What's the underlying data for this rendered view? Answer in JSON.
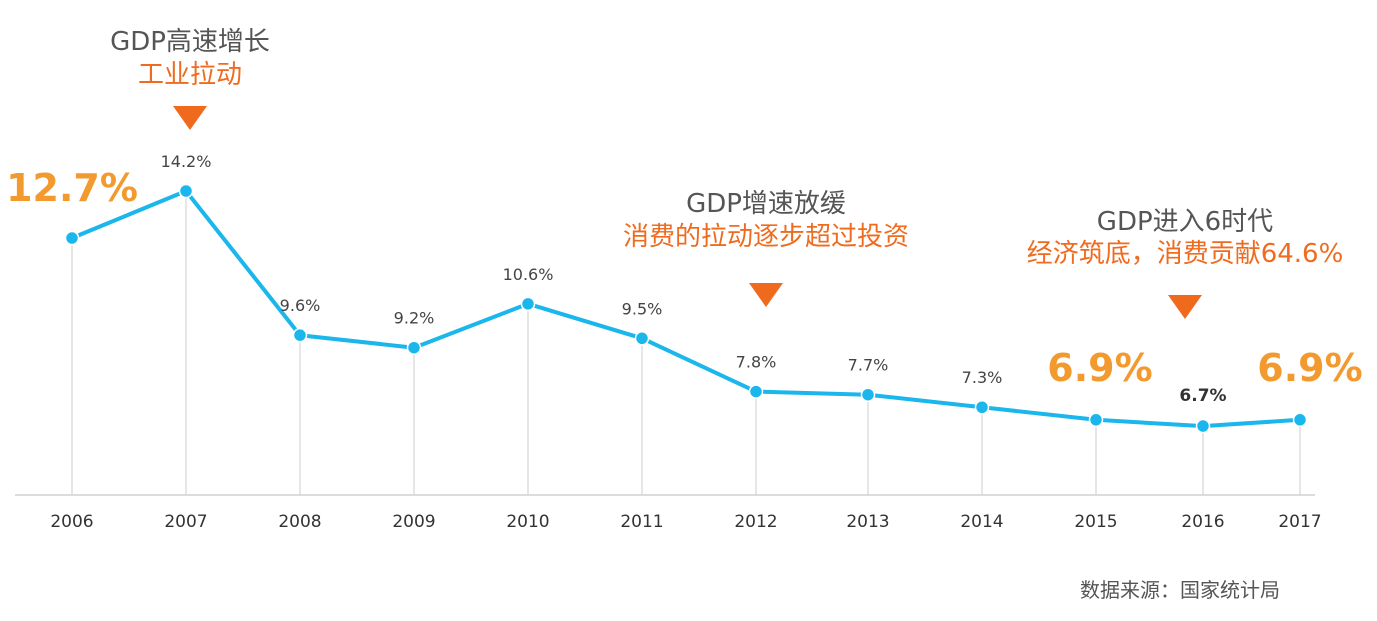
{
  "chart_data": {
    "type": "line",
    "categories": [
      "2006",
      "2007",
      "2008",
      "2009",
      "2010",
      "2011",
      "2012",
      "2013",
      "2014",
      "2015",
      "2016",
      "2017"
    ],
    "values": [
      12.7,
      14.2,
      9.6,
      9.2,
      10.6,
      9.5,
      7.8,
      7.7,
      7.3,
      6.9,
      6.7,
      6.9
    ],
    "value_labels": [
      "12.7%",
      "14.2%",
      "9.6%",
      "9.2%",
      "10.6%",
      "9.5%",
      "7.8%",
      "7.7%",
      "7.3%",
      "6.9%",
      "6.7%",
      "6.9%"
    ],
    "ylim": [
      4.5,
      14.2
    ],
    "grid": false,
    "annotations": [
      {
        "at": "2007",
        "title": "GDP高速增长",
        "subtitle": "工业拉动"
      },
      {
        "at": "2012",
        "title": "GDP增速放缓",
        "subtitle": "消费的拉动逐步超过投资"
      },
      {
        "at": "2016",
        "title": "GDP进入6时代",
        "subtitle": "经济筑底，消费贡献64.6%"
      }
    ],
    "source": "数据来源：国家统计局"
  },
  "colors": {
    "line": "#1ab6ec",
    "highlight": "#f39a2e",
    "annotation": "#ef6b1f",
    "marker": "#f06a1d"
  }
}
